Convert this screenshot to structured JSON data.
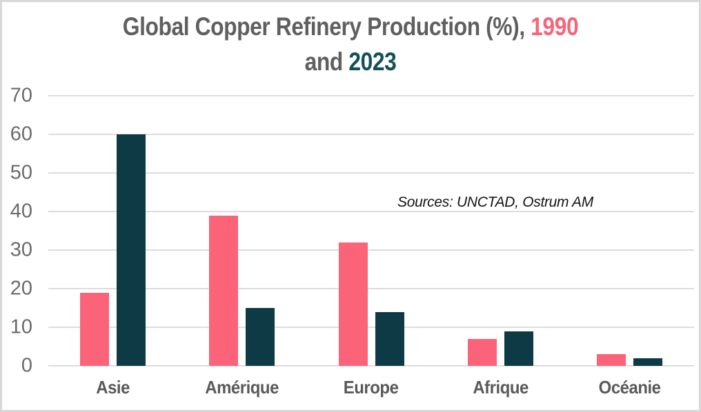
{
  "title": {
    "line1_prefix": "Global Copper Refinery Production (%),",
    "year1": "1990",
    "line2_prefix": "and",
    "year2": "2023"
  },
  "colors": {
    "series_1990": "#fa6378",
    "series_2023": "#0d3a44",
    "title_gray": "#5f5f5f",
    "title_year1_pink": "#fa6378",
    "title_year2_teal": "#14505a",
    "axis_category_label": "#595959",
    "y_tick_label": "#6a6a6a",
    "gridline": "#dcdcdc",
    "outer_border": "#d8d8d8",
    "annotation_text": "#141414",
    "background": "#ffffff"
  },
  "chart_data": {
    "type": "bar",
    "title": "Global Copper Refinery Production (%), 1990 and 2023",
    "categories": [
      "Asie",
      "Amérique",
      "Europe",
      "Afrique",
      "Océanie"
    ],
    "series": [
      {
        "name": "1990",
        "color": "#fa6378",
        "values": [
          19,
          39,
          32,
          7,
          3
        ]
      },
      {
        "name": "2023",
        "color": "#0d3a44",
        "values": [
          60,
          15,
          14,
          9,
          2
        ]
      }
    ],
    "xlabel": "",
    "ylabel": "",
    "ylim": [
      0,
      70
    ],
    "yticks": [
      0,
      10,
      20,
      30,
      40,
      50,
      60,
      70
    ],
    "grid": true,
    "legend_position": "none (years colored in title)",
    "annotation": "Sources: UNCTAD, Ostrum AM"
  }
}
